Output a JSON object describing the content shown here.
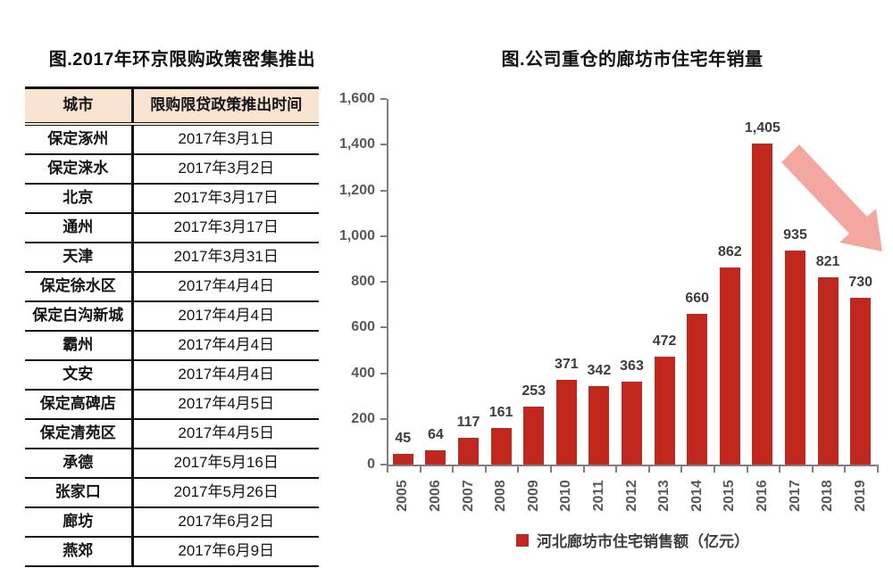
{
  "left_panel": {
    "title": "图.2017年环京限购政策密集推出",
    "table": {
      "headers": [
        "城市",
        "限购限贷政策推出时间"
      ],
      "rows": [
        [
          "保定涿州",
          "2017年3月1日"
        ],
        [
          "保定涞水",
          "2017年3月2日"
        ],
        [
          "北京",
          "2017年3月17日"
        ],
        [
          "通州",
          "2017年3月17日"
        ],
        [
          "天津",
          "2017年3月31日"
        ],
        [
          "保定徐水区",
          "2017年4月4日"
        ],
        [
          "保定白沟新城",
          "2017年4月4日"
        ],
        [
          "霸州",
          "2017年4月4日"
        ],
        [
          "文安",
          "2017年4月4日"
        ],
        [
          "保定高碑店",
          "2017年4月5日"
        ],
        [
          "保定清苑区",
          "2017年4月5日"
        ],
        [
          "承德",
          "2017年5月16日"
        ],
        [
          "张家口",
          "2017年5月26日"
        ],
        [
          "廊坊",
          "2017年6月2日"
        ],
        [
          "燕郊",
          "2017年6月9日"
        ]
      ]
    }
  },
  "chart": {
    "title": "图.公司重仓的廊坊市住宅年销量",
    "legend_label": "河北廊坊市住宅销售额（亿元）"
  },
  "chart_data": {
    "type": "bar",
    "title": "图.公司重仓的廊坊市住宅年销量",
    "categories": [
      "2005",
      "2006",
      "2007",
      "2008",
      "2009",
      "2010",
      "2011",
      "2012",
      "2013",
      "2014",
      "2015",
      "2016",
      "2017",
      "2018",
      "2019"
    ],
    "values": [
      45,
      64,
      117,
      161,
      253,
      371,
      342,
      363,
      472,
      660,
      862,
      1405,
      935,
      821,
      730
    ],
    "value_labels": [
      "45",
      "64",
      "117",
      "161",
      "253",
      "371",
      "342",
      "363",
      "472",
      "660",
      "862",
      "1,405",
      "935",
      "821",
      "730"
    ],
    "xlabel": "",
    "ylabel": "",
    "ylim": [
      0,
      1600
    ],
    "yticks": [
      0,
      200,
      400,
      600,
      800,
      1000,
      1200,
      1400,
      1600
    ],
    "ytick_labels": [
      "0",
      "200",
      "400",
      "600",
      "800",
      "1,000",
      "1,200",
      "1,400",
      "1,600"
    ],
    "grid": false,
    "legend": [
      "河北廊坊市住宅销售额（亿元）"
    ],
    "legend_position": "bottom",
    "annotations": [
      "downward-trend-arrow over 2017-2019 bars"
    ]
  },
  "colors": {
    "bar": "#c0281e",
    "legend_swatch": "#c0281e",
    "arrow": "#f4a6a1",
    "axis": "#7f7f7f",
    "axis_label": "#595959",
    "data_label": "#3d3d3d",
    "table_header_bg": "#f9e4d2",
    "table_border": "#111111"
  }
}
